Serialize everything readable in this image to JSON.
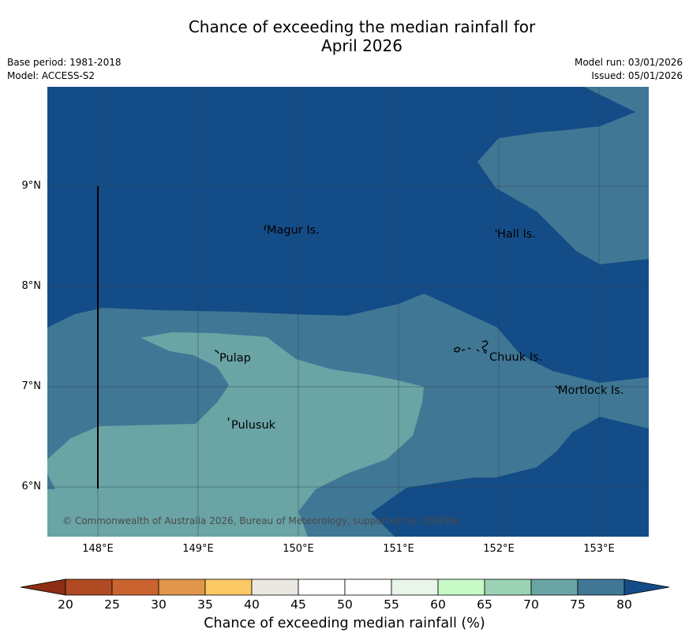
{
  "title_line1": "Chance of exceeding the median rainfall for",
  "title_line2": "April 2026",
  "meta": {
    "base_period": "Base period: 1981-2018",
    "model": "Model: ACCESS-S2",
    "model_run": "Model run: 03/01/2026",
    "issued": "Issued: 05/01/2026"
  },
  "map": {
    "lat_ticks": [
      "9°N",
      "8°N",
      "7°N",
      "6°N"
    ],
    "lon_ticks": [
      "148°E",
      "149°E",
      "150°E",
      "151°E",
      "152°E",
      "153°E"
    ],
    "places": {
      "magur": "Magur Is.",
      "hall": "Hall Is.",
      "pulap": "Pulap",
      "chuuk": "Chuuk Is.",
      "mortlock": "Mortlock Is.",
      "pulusuk": "Pulusuk"
    },
    "copyright": "© Commonwealth of Australia 2026, Bureau of Meteorology, supported by COSPPac"
  },
  "colorbar": {
    "title": "Chance of exceeding median rainfall (%)",
    "ticks": [
      "20",
      "25",
      "30",
      "35",
      "40",
      "45",
      "50",
      "55",
      "60",
      "65",
      "70",
      "75",
      "80"
    ],
    "colors": {
      "below20": "#8c2e14",
      "c20_25": "#b04a23",
      "c25_30": "#cb6330",
      "c30_35": "#e0964b",
      "c35_40": "#fdc965",
      "c40_45": "#ebe8e3",
      "c45_50": "#ffffff",
      "c50_55": "#ffffff",
      "c55_60": "#e8f5e8",
      "c60_65": "#c8fac8",
      "c65_70": "#9cd2b4",
      "c70_75": "#6aa4a5",
      "c75_80": "#407795",
      "above80": "#144c87"
    }
  }
}
